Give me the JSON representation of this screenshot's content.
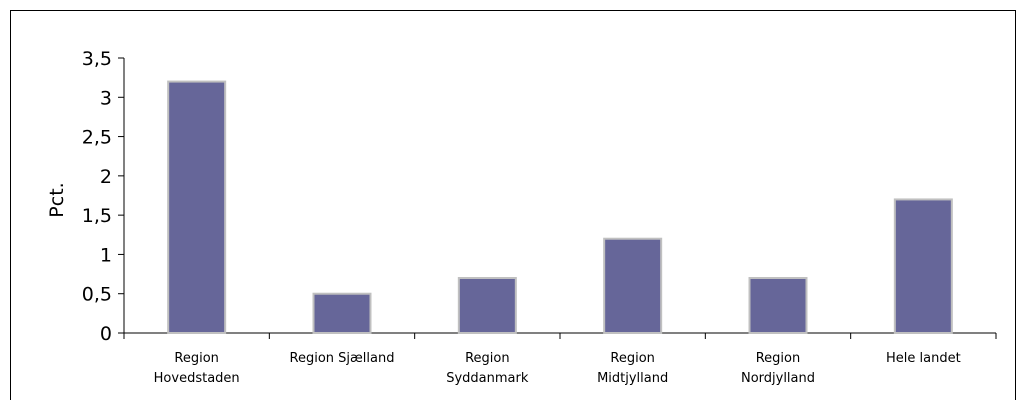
{
  "chart_data": {
    "type": "bar",
    "title": "",
    "xlabel": "",
    "ylabel": "Pct.",
    "ylim": [
      0,
      3.5
    ],
    "yticks": [
      "0",
      "0,5",
      "1",
      "1,5",
      "2",
      "2,5",
      "3",
      "3,5"
    ],
    "categories": [
      [
        "Region",
        "Hovedstaden"
      ],
      [
        "Region Sjælland"
      ],
      [
        "Region",
        "Syddanmark"
      ],
      [
        "Region",
        "Midtjylland"
      ],
      [
        "Region",
        "Nordjylland"
      ],
      [
        "Hele landet"
      ]
    ],
    "values": [
      3.2,
      0.5,
      0.7,
      1.2,
      0.7,
      1.7
    ],
    "bar_color": "#666699",
    "bar_edge_color": "#c0c0c0",
    "grid": false,
    "legend": false
  }
}
